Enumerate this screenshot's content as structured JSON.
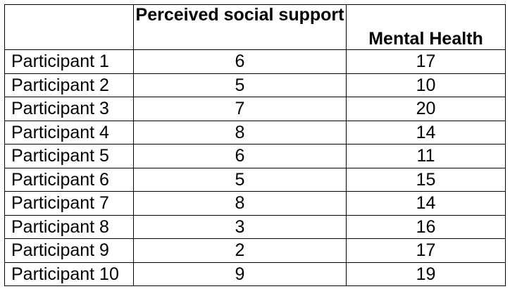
{
  "table": {
    "headers": [
      "",
      "Perceived social support",
      "Mental Health"
    ],
    "rows": [
      {
        "participant": "Participant 1",
        "social_support": "6",
        "mental_health": "17"
      },
      {
        "participant": "Participant 2",
        "social_support": "5",
        "mental_health": "10"
      },
      {
        "participant": "Participant 3",
        "social_support": "7",
        "mental_health": "20"
      },
      {
        "participant": "Participant 4",
        "social_support": "8",
        "mental_health": "14"
      },
      {
        "participant": "Participant 5",
        "social_support": "6",
        "mental_health": "11"
      },
      {
        "participant": "Participant 6",
        "social_support": "5",
        "mental_health": "15"
      },
      {
        "participant": "Participant 7",
        "social_support": "8",
        "mental_health": "14"
      },
      {
        "participant": "Participant 8",
        "social_support": "3",
        "mental_health": "16"
      },
      {
        "participant": "Participant 9",
        "social_support": "2",
        "mental_health": "17"
      },
      {
        "participant": "Participant 10",
        "social_support": "9",
        "mental_health": "19"
      }
    ]
  }
}
